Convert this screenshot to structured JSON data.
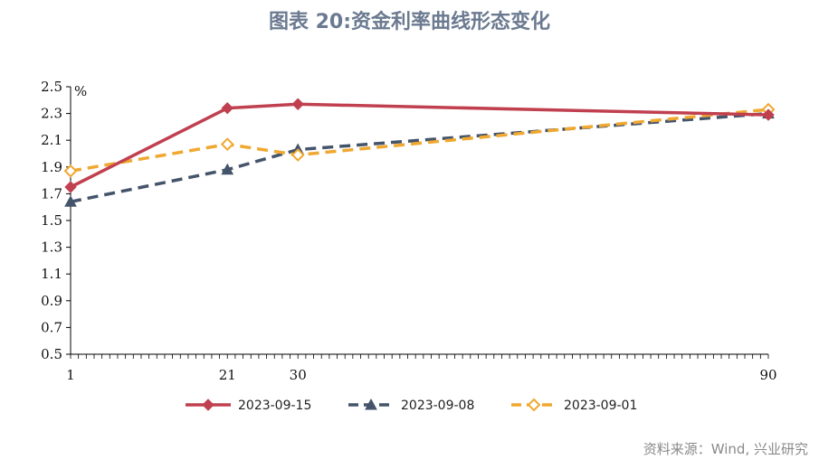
{
  "title": "图表 20:资金利率曲线形态变化",
  "source": "资料来源：Wind, 兴业研究",
  "chart_data": {
    "type": "line",
    "unit_label": "%",
    "x": [
      1,
      21,
      30,
      90
    ],
    "xlim": [
      1,
      90
    ],
    "ylim": [
      0.5,
      2.5
    ],
    "y_ticks": [
      "0.5",
      "0.7",
      "0.9",
      "1.1",
      "1.3",
      "1.5",
      "1.7",
      "1.9",
      "2.1",
      "2.3",
      "2.5"
    ],
    "x_ticks": [
      "1",
      "21",
      "30",
      "90"
    ],
    "legend_position": "bottom",
    "grid": false,
    "series": [
      {
        "name": "2023-09-15",
        "values": [
          1.75,
          2.34,
          2.37,
          2.29
        ],
        "color": "#c0404f",
        "style": "solid",
        "marker": "diamond"
      },
      {
        "name": "2023-09-08",
        "values": [
          1.64,
          1.88,
          2.03,
          2.3
        ],
        "color": "#44546a",
        "style": "dashed",
        "marker": "triangle"
      },
      {
        "name": "2023-09-01",
        "values": [
          1.87,
          2.07,
          1.99,
          2.33
        ],
        "color": "#f0a830",
        "style": "dashed",
        "marker": "diamond-open"
      }
    ]
  }
}
